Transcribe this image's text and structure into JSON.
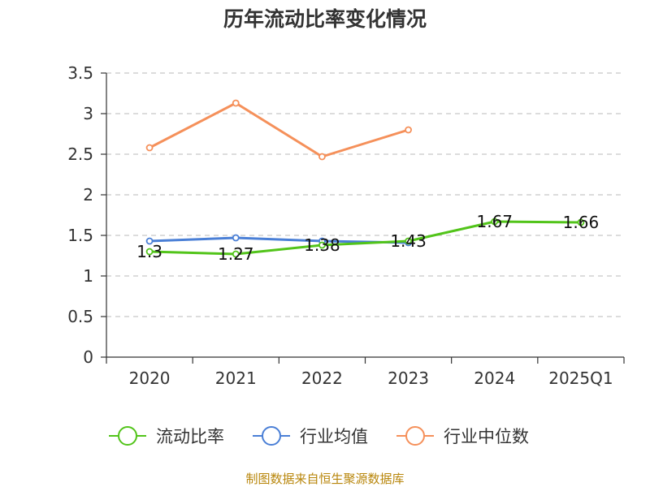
{
  "chart_data": {
    "type": "line",
    "title": "历年流动比率变化情况",
    "categories": [
      "2020",
      "2021",
      "2022",
      "2023",
      "2024",
      "2025Q1"
    ],
    "ylim": [
      0,
      3.5
    ],
    "yticks": [
      0,
      0.5,
      1,
      1.5,
      2,
      2.5,
      3,
      3.5
    ],
    "ytick_labels": [
      "0",
      "0.5",
      "1",
      "1.5",
      "2",
      "2.5",
      "3",
      "3.5"
    ],
    "grid": true,
    "legend_position": "bottom",
    "series": [
      {
        "name": "流动比率",
        "color": "#52c41a",
        "values": [
          1.3,
          1.27,
          1.38,
          1.43,
          1.67,
          1.66
        ],
        "labels": [
          "1.3",
          "1.27",
          "1.38",
          "1.43",
          "1.67",
          "1.66"
        ]
      },
      {
        "name": "行业均值",
        "color": "#4a7fd6",
        "values": [
          1.43,
          1.47,
          1.43,
          1.41,
          null,
          null
        ]
      },
      {
        "name": "行业中位数",
        "color": "#f5905a",
        "values": [
          2.58,
          3.13,
          2.47,
          2.8,
          null,
          null
        ]
      }
    ]
  },
  "source": "制图数据来自恒生聚源数据库"
}
